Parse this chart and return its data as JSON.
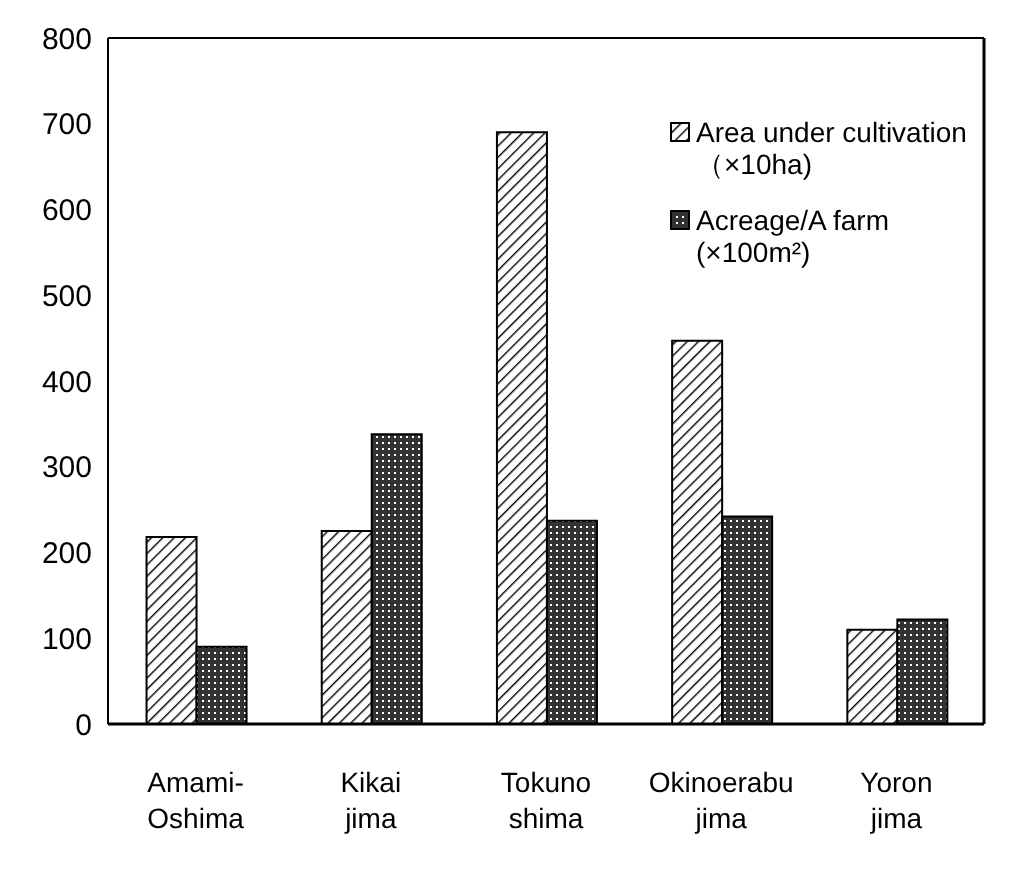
{
  "chart_data": {
    "type": "bar",
    "categories": [
      "Amami-\nOshima",
      "Kikai\njima",
      "Tokuno\nshima",
      "Okinoerabu\njima",
      "Yoron\njima"
    ],
    "series": [
      {
        "name": "Area under cultivation（×10ha)",
        "color": "#000000",
        "values": [
          218,
          225,
          690,
          447,
          110
        ]
      },
      {
        "name": "Acreage/A farm (×100m²)",
        "color": "#000000",
        "values": [
          90,
          338,
          237,
          242,
          122
        ]
      }
    ],
    "ylim": [
      0,
      800
    ],
    "yticks": [
      0,
      100,
      200,
      300,
      400,
      500,
      600,
      700,
      800
    ],
    "grid": false,
    "legend": "top right"
  }
}
